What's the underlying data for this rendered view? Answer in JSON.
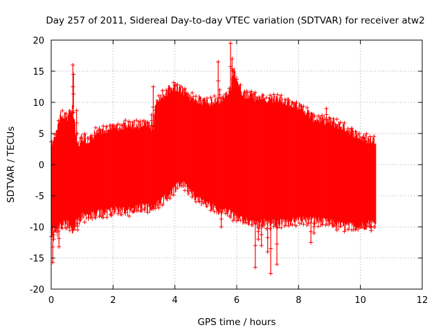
{
  "chart_data": {
    "type": "scatter",
    "title": "Day 257 of 2011, Sidereal Day-to-day VTEC variation (SDTVAR) for receiver atw2",
    "xlabel": "GPS time / hours",
    "ylabel": "SDTVAR / TECUs",
    "xlim": [
      0,
      12
    ],
    "ylim": [
      -20,
      20
    ],
    "x_ticks": [
      0,
      2,
      4,
      6,
      8,
      10,
      12
    ],
    "y_ticks": [
      -20,
      -15,
      -10,
      -5,
      0,
      5,
      10,
      15,
      20
    ],
    "grid": true,
    "marker": "plus",
    "series_color": "#ff0000",
    "series": [
      {
        "name": "SDTVAR",
        "envelope": {
          "x": [
            0.0,
            0.1,
            0.2,
            0.3,
            0.5,
            0.7,
            0.8,
            0.9,
            1.0,
            1.2,
            1.5,
            2.0,
            2.5,
            3.0,
            3.3,
            3.4,
            3.8,
            4.0,
            4.2,
            4.5,
            5.0,
            5.5,
            5.8,
            5.9,
            6.0,
            6.2,
            6.5,
            7.0,
            7.5,
            8.0,
            8.5,
            9.0,
            9.5,
            10.0,
            10.3,
            10.5
          ],
          "upper": [
            3.5,
            4.5,
            6.0,
            8.5,
            7.5,
            9.0,
            5.0,
            3.5,
            4.5,
            4.0,
            5.5,
            6.0,
            6.5,
            6.5,
            6.0,
            10.5,
            12.0,
            12.5,
            12.0,
            11.0,
            10.0,
            10.5,
            12.0,
            15.5,
            13.5,
            11.5,
            11.0,
            10.5,
            10.5,
            9.5,
            7.5,
            7.0,
            6.0,
            4.5,
            4.0,
            4.0
          ],
          "lower": [
            -11.0,
            -10.5,
            -11.0,
            -10.0,
            -9.5,
            -10.5,
            -9.5,
            -9.0,
            -8.5,
            -8.5,
            -8.0,
            -7.5,
            -7.5,
            -7.0,
            -7.0,
            -6.5,
            -5.0,
            -4.0,
            -3.0,
            -4.5,
            -6.5,
            -7.5,
            -8.0,
            -8.5,
            -8.5,
            -9.0,
            -9.5,
            -9.5,
            -9.5,
            -9.0,
            -9.0,
            -9.5,
            -10.0,
            -10.0,
            -9.5,
            -9.5
          ]
        },
        "outliers": [
          {
            "x": 0.05,
            "y": -15.7
          },
          {
            "x": 0.08,
            "y": -12.0
          },
          {
            "x": 0.25,
            "y": -13.2
          },
          {
            "x": 0.7,
            "y": 16.0
          },
          {
            "x": 0.72,
            "y": 14.5
          },
          {
            "x": 0.82,
            "y": 8.7
          },
          {
            "x": 0.85,
            "y": -10.5
          },
          {
            "x": 1.95,
            "y": -8.2
          },
          {
            "x": 3.25,
            "y": 8.0
          },
          {
            "x": 3.3,
            "y": 12.5
          },
          {
            "x": 5.4,
            "y": 16.5
          },
          {
            "x": 5.45,
            "y": 12.0
          },
          {
            "x": 5.8,
            "y": 19.5
          },
          {
            "x": 5.85,
            "y": 17.0
          },
          {
            "x": 5.5,
            "y": -10.0
          },
          {
            "x": 6.6,
            "y": -16.5
          },
          {
            "x": 6.7,
            "y": -12.0
          },
          {
            "x": 6.8,
            "y": -13.0
          },
          {
            "x": 7.0,
            "y": -14.0
          },
          {
            "x": 7.1,
            "y": -17.5
          },
          {
            "x": 7.3,
            "y": -16.0
          },
          {
            "x": 8.4,
            "y": -12.5
          },
          {
            "x": 8.5,
            "y": -11.0
          },
          {
            "x": 8.9,
            "y": 9.0
          },
          {
            "x": 10.35,
            "y": -10.6
          },
          {
            "x": 4.0,
            "y": 12.8
          }
        ]
      }
    ]
  }
}
